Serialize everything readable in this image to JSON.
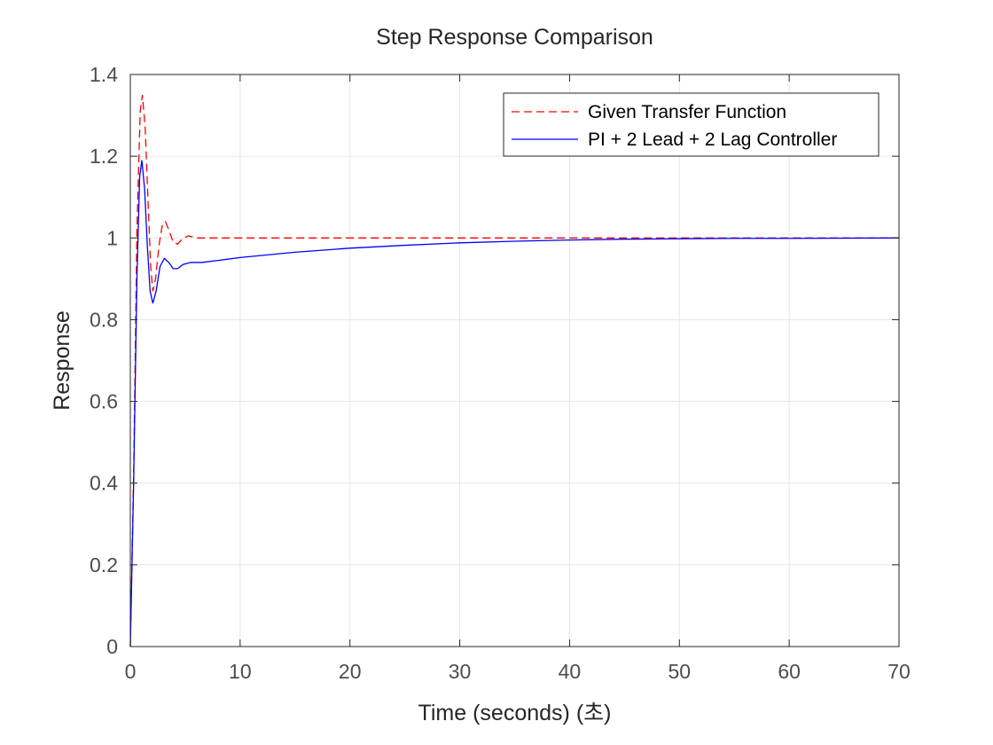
{
  "chart_data": {
    "type": "line",
    "title": "Step Response Comparison",
    "xlabel": "Time (seconds) (초)",
    "ylabel": "Response",
    "xlim": [
      0,
      70
    ],
    "ylim": [
      0,
      1.4
    ],
    "xticks": [
      0,
      10,
      20,
      30,
      40,
      50,
      60,
      70
    ],
    "yticks": [
      0,
      0.2,
      0.4,
      0.6,
      0.8,
      1,
      1.2,
      1.4
    ],
    "xtick_labels": [
      "0",
      "10",
      "20",
      "30",
      "40",
      "50",
      "60",
      "70"
    ],
    "ytick_labels": [
      "0",
      "0.2",
      "0.4",
      "0.6",
      "0.8",
      "1",
      "1.2",
      "1.4"
    ],
    "grid": true,
    "legend_position": "top-right",
    "series": [
      {
        "name": "Given Transfer Function",
        "color": "#ff0000",
        "style": "dashed",
        "points": [
          [
            0,
            0
          ],
          [
            0.3,
            0.42
          ],
          [
            0.6,
            1.02
          ],
          [
            0.9,
            1.31
          ],
          [
            1.1,
            1.35
          ],
          [
            1.35,
            1.27
          ],
          [
            1.6,
            1.1
          ],
          [
            1.85,
            0.93
          ],
          [
            2.05,
            0.87
          ],
          [
            2.3,
            0.9
          ],
          [
            2.6,
            0.98
          ],
          [
            2.9,
            1.03
          ],
          [
            3.2,
            1.04
          ],
          [
            3.5,
            1.02
          ],
          [
            3.9,
            0.99
          ],
          [
            4.3,
            0.985
          ],
          [
            4.8,
            1.0
          ],
          [
            5.3,
            1.005
          ],
          [
            6,
            1.0
          ],
          [
            8,
            1.0
          ],
          [
            10,
            1.0
          ],
          [
            20,
            1.0
          ],
          [
            40,
            1.0
          ],
          [
            70,
            1.0
          ]
        ]
      },
      {
        "name": "PI + 2 Lead + 2 Lag Controller",
        "color": "#0000ff",
        "style": "solid",
        "points": [
          [
            0,
            0
          ],
          [
            0.3,
            0.4
          ],
          [
            0.6,
            0.9
          ],
          [
            0.85,
            1.15
          ],
          [
            1.05,
            1.19
          ],
          [
            1.3,
            1.12
          ],
          [
            1.55,
            0.98
          ],
          [
            1.8,
            0.87
          ],
          [
            2.05,
            0.84
          ],
          [
            2.35,
            0.87
          ],
          [
            2.7,
            0.93
          ],
          [
            3.1,
            0.95
          ],
          [
            3.5,
            0.94
          ],
          [
            3.9,
            0.925
          ],
          [
            4.3,
            0.925
          ],
          [
            4.8,
            0.935
          ],
          [
            5.5,
            0.94
          ],
          [
            6.5,
            0.94
          ],
          [
            8,
            0.945
          ],
          [
            10,
            0.952
          ],
          [
            15,
            0.965
          ],
          [
            20,
            0.975
          ],
          [
            25,
            0.982
          ],
          [
            30,
            0.988
          ],
          [
            35,
            0.992
          ],
          [
            40,
            0.995
          ],
          [
            45,
            0.997
          ],
          [
            50,
            0.998
          ],
          [
            55,
            0.999
          ],
          [
            60,
            0.999
          ],
          [
            70,
            1.0
          ]
        ]
      }
    ]
  },
  "colors": {
    "grid": "#e6e6e6",
    "axis": "#262626",
    "tick_text": "#4d4d4d"
  }
}
